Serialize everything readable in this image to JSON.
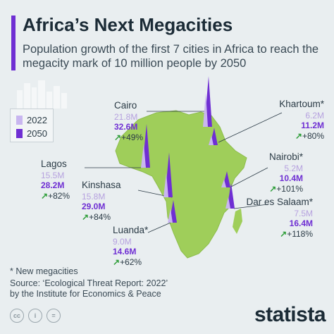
{
  "header": {
    "title": "Africa’s Next Megacities",
    "subtitle": "Population growth of the first 7 cities in Africa to reach the megacity mark of 10 million people by 2050"
  },
  "colors": {
    "accent": "#6f2fd3",
    "light": "#c9b6f0",
    "land": "#9fce5a",
    "growth_arrow": "#2f9e3a"
  },
  "legend": {
    "items": [
      {
        "label": "2022",
        "color": "#c9b6f0"
      },
      {
        "label": "2050",
        "color": "#6f2fd3"
      }
    ]
  },
  "chart_data": {
    "type": "bar",
    "units": "million people",
    "categories": [
      "Cairo",
      "Khartoum*",
      "Lagos",
      "Kinshasa",
      "Nairobi*",
      "Dar es Salaam*",
      "Luanda*"
    ],
    "series": [
      {
        "name": "2022",
        "values": [
          21.8,
          6.2,
          15.5,
          15.8,
          5.2,
          7.5,
          9.0
        ]
      },
      {
        "name": "2050",
        "values": [
          32.6,
          11.2,
          28.2,
          29.0,
          10.4,
          16.4,
          14.6
        ]
      }
    ],
    "cities": [
      {
        "name": "Cairo",
        "v2022": "21.8M",
        "v2050": "32.6M",
        "growth": "+49%"
      },
      {
        "name": "Khartoum*",
        "v2022": "6.2M",
        "v2050": "11.2M",
        "growth": "+80%"
      },
      {
        "name": "Lagos",
        "v2022": "15.5M",
        "v2050": "28.2M",
        "growth": "+82%"
      },
      {
        "name": "Kinshasa",
        "v2022": "15.8M",
        "v2050": "29.0M",
        "growth": "+84%"
      },
      {
        "name": "Nairobi*",
        "v2022": "5.2M",
        "v2050": "10.4M",
        "growth": "+101%"
      },
      {
        "name": "Dar es Salaam*",
        "v2022": "7.5M",
        "v2050": "16.4M",
        "growth": "+118%"
      },
      {
        "name": "Luanda*",
        "v2022": "9.0M",
        "v2050": "14.6M",
        "growth": "+62%"
      }
    ]
  },
  "footer": {
    "note": "* New megacities",
    "source_line1": "Source: ‘Ecological Threat Report: 2022’",
    "source_line2": "by the Institute for Economics & Peace",
    "brand": "statista",
    "license_icons": [
      "cc-icon",
      "info-icon",
      "equals-icon"
    ]
  }
}
